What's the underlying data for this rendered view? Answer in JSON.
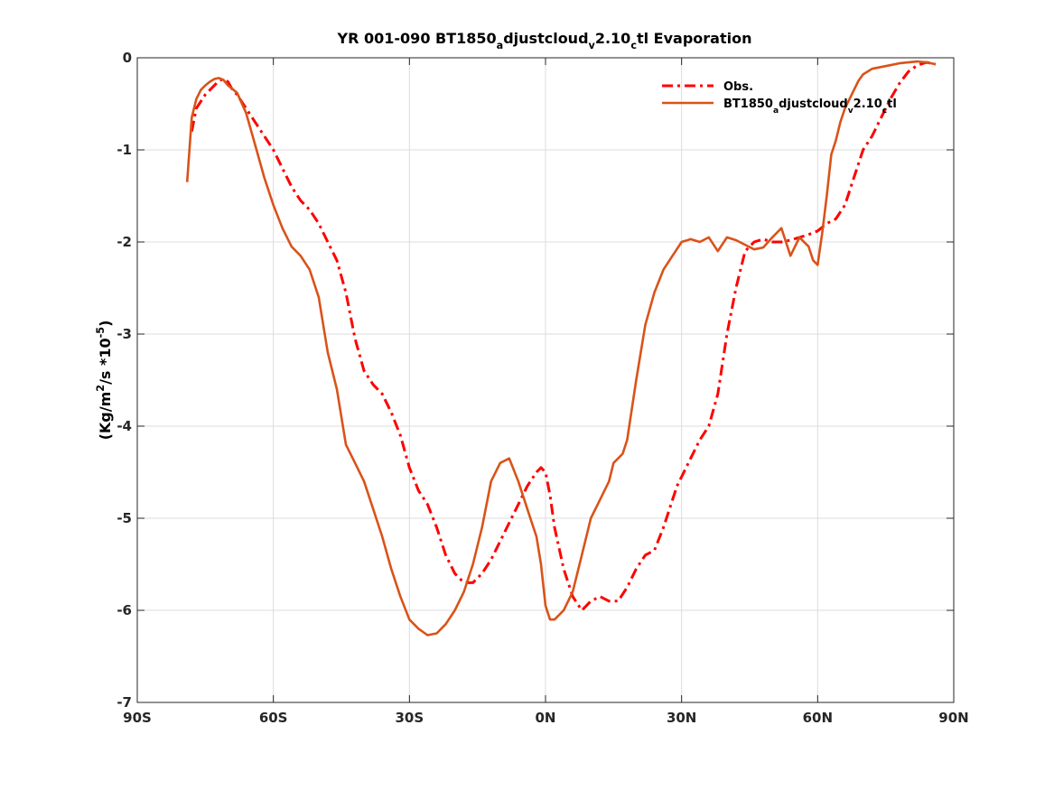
{
  "chart_data": {
    "type": "line",
    "title": {
      "parts": [
        {
          "text": "YR 001-090 BT1850",
          "sub": false
        },
        {
          "text": "a",
          "sub": true
        },
        {
          "text": "djustcloud",
          "sub": false
        },
        {
          "text": "v",
          "sub": true
        },
        {
          "text": "2.10",
          "sub": false
        },
        {
          "text": "c",
          "sub": true
        },
        {
          "text": "tl Evaporation",
          "sub": false
        }
      ]
    },
    "ylabel": {
      "parts": [
        {
          "text": "(Kg/m",
          "sup": false
        },
        {
          "text": "2",
          "sup": true
        },
        {
          "text": "/s *10",
          "sup": false
        },
        {
          "text": "-5",
          "sup": true
        },
        {
          "text": ")",
          "sup": false
        }
      ]
    },
    "xlim": [
      -90,
      90
    ],
    "ylim": [
      -7,
      0
    ],
    "grid": true,
    "legend_position": "top-right",
    "xticks": [
      {
        "value": -90,
        "label": "90S"
      },
      {
        "value": -60,
        "label": "60S"
      },
      {
        "value": -30,
        "label": "30S"
      },
      {
        "value": 0,
        "label": "0N"
      },
      {
        "value": 30,
        "label": "30N"
      },
      {
        "value": 60,
        "label": "60N"
      },
      {
        "value": 90,
        "label": "90N"
      }
    ],
    "yticks": [
      {
        "value": 0,
        "label": "0"
      },
      {
        "value": -1,
        "label": "-1"
      },
      {
        "value": -2,
        "label": "-2"
      },
      {
        "value": -3,
        "label": "-3"
      },
      {
        "value": -4,
        "label": "-4"
      },
      {
        "value": -5,
        "label": "-5"
      },
      {
        "value": -6,
        "label": "-6"
      },
      {
        "value": -7,
        "label": "-7"
      }
    ],
    "series": [
      {
        "name": {
          "parts": [
            {
              "text": "Obs.",
              "sub": false
            }
          ]
        },
        "color": "#ff0000",
        "style": "dashdot",
        "x": [
          -78,
          -77,
          -75,
          -73,
          -72,
          -71,
          -70,
          -69,
          -68,
          -66,
          -64,
          -62,
          -60,
          -58,
          -56,
          -54,
          -52,
          -50,
          -48,
          -46,
          -44,
          -42,
          -40,
          -38,
          -36,
          -34,
          -32,
          -30,
          -28,
          -26,
          -24,
          -22,
          -20,
          -18,
          -16,
          -14,
          -12,
          -10,
          -8,
          -6,
          -4,
          -2,
          -1,
          0,
          1,
          2,
          4,
          6,
          8,
          9,
          10,
          12,
          14,
          16,
          18,
          20,
          22,
          24,
          26,
          28,
          29,
          30,
          32,
          34,
          36,
          38,
          40,
          42,
          44,
          45,
          46,
          48,
          50,
          52,
          54,
          56,
          58,
          60,
          62,
          64,
          66,
          68,
          70,
          72,
          74,
          76,
          78,
          80,
          82,
          84,
          86
        ],
        "y": [
          -0.8,
          -0.55,
          -0.4,
          -0.3,
          -0.25,
          -0.23,
          -0.26,
          -0.35,
          -0.4,
          -0.55,
          -0.7,
          -0.85,
          -1.0,
          -1.2,
          -1.4,
          -1.55,
          -1.65,
          -1.8,
          -2.0,
          -2.2,
          -2.55,
          -3.05,
          -3.4,
          -3.55,
          -3.65,
          -3.85,
          -4.1,
          -4.45,
          -4.7,
          -4.85,
          -5.1,
          -5.4,
          -5.6,
          -5.7,
          -5.7,
          -5.6,
          -5.45,
          -5.25,
          -5.05,
          -4.85,
          -4.65,
          -4.5,
          -4.45,
          -4.5,
          -4.75,
          -5.1,
          -5.55,
          -5.85,
          -6.0,
          -5.95,
          -5.9,
          -5.85,
          -5.9,
          -5.9,
          -5.75,
          -5.55,
          -5.4,
          -5.35,
          -5.1,
          -4.8,
          -4.65,
          -4.55,
          -4.35,
          -4.15,
          -4.0,
          -3.65,
          -3.0,
          -2.5,
          -2.1,
          -2.05,
          -2.0,
          -1.97,
          -2.0,
          -2.0,
          -1.98,
          -1.95,
          -1.92,
          -1.88,
          -1.8,
          -1.75,
          -1.6,
          -1.3,
          -1.0,
          -0.85,
          -0.65,
          -0.45,
          -0.28,
          -0.15,
          -0.08,
          -0.05,
          -0.07
        ]
      },
      {
        "name": {
          "parts": [
            {
              "text": "BT1850",
              "sub": false
            },
            {
              "text": "a",
              "sub": true
            },
            {
              "text": "djustcloud",
              "sub": false
            },
            {
              "text": "v",
              "sub": true
            },
            {
              "text": "2.10",
              "sub": false
            },
            {
              "text": "c",
              "sub": true
            },
            {
              "text": "tl",
              "sub": false
            }
          ]
        },
        "color": "#d95319",
        "style": "solid",
        "x": [
          -79,
          -78,
          -77,
          -76,
          -75,
          -74,
          -73,
          -72,
          -71,
          -70,
          -69,
          -68,
          -66,
          -64,
          -62,
          -60,
          -58,
          -56,
          -54,
          -52,
          -50,
          -48,
          -46,
          -44,
          -42,
          -40,
          -38,
          -36,
          -34,
          -32,
          -30,
          -28,
          -26,
          -24,
          -22,
          -20,
          -19,
          -18,
          -17,
          -16,
          -14,
          -12,
          -10,
          -8,
          -6,
          -4,
          -3,
          -2,
          -1,
          0,
          1,
          2,
          4,
          6,
          8,
          10,
          12,
          14,
          15,
          16,
          17,
          18,
          20,
          22,
          24,
          26,
          28,
          30,
          32,
          34,
          36,
          38,
          40,
          42,
          44,
          46,
          48,
          50,
          52,
          54,
          56,
          58,
          59,
          60,
          61,
          62,
          63,
          64,
          65,
          66,
          67,
          68,
          69,
          70,
          72,
          74,
          76,
          78,
          80,
          82,
          84,
          86
        ],
        "y": [
          -1.35,
          -0.65,
          -0.45,
          -0.35,
          -0.3,
          -0.26,
          -0.23,
          -0.22,
          -0.24,
          -0.3,
          -0.34,
          -0.38,
          -0.6,
          -0.95,
          -1.3,
          -1.6,
          -1.85,
          -2.05,
          -2.15,
          -2.3,
          -2.6,
          -3.2,
          -3.6,
          -4.2,
          -4.4,
          -4.6,
          -4.9,
          -5.2,
          -5.55,
          -5.85,
          -6.1,
          -6.2,
          -6.27,
          -6.25,
          -6.15,
          -6.0,
          -5.9,
          -5.8,
          -5.65,
          -5.5,
          -5.1,
          -4.6,
          -4.4,
          -4.35,
          -4.6,
          -4.9,
          -5.05,
          -5.2,
          -5.5,
          -5.95,
          -6.1,
          -6.1,
          -6.0,
          -5.8,
          -5.4,
          -5.0,
          -4.8,
          -4.6,
          -4.4,
          -4.35,
          -4.3,
          -4.15,
          -3.5,
          -2.9,
          -2.55,
          -2.3,
          -2.15,
          -2.0,
          -1.97,
          -2.0,
          -1.95,
          -2.1,
          -1.95,
          -1.98,
          -2.03,
          -2.08,
          -2.06,
          -1.95,
          -1.85,
          -2.15,
          -1.95,
          -2.05,
          -2.2,
          -2.25,
          -1.9,
          -1.5,
          -1.05,
          -0.9,
          -0.7,
          -0.55,
          -0.45,
          -0.35,
          -0.25,
          -0.18,
          -0.12,
          -0.1,
          -0.08,
          -0.06,
          -0.05,
          -0.04,
          -0.05,
          -0.07
        ]
      }
    ]
  }
}
